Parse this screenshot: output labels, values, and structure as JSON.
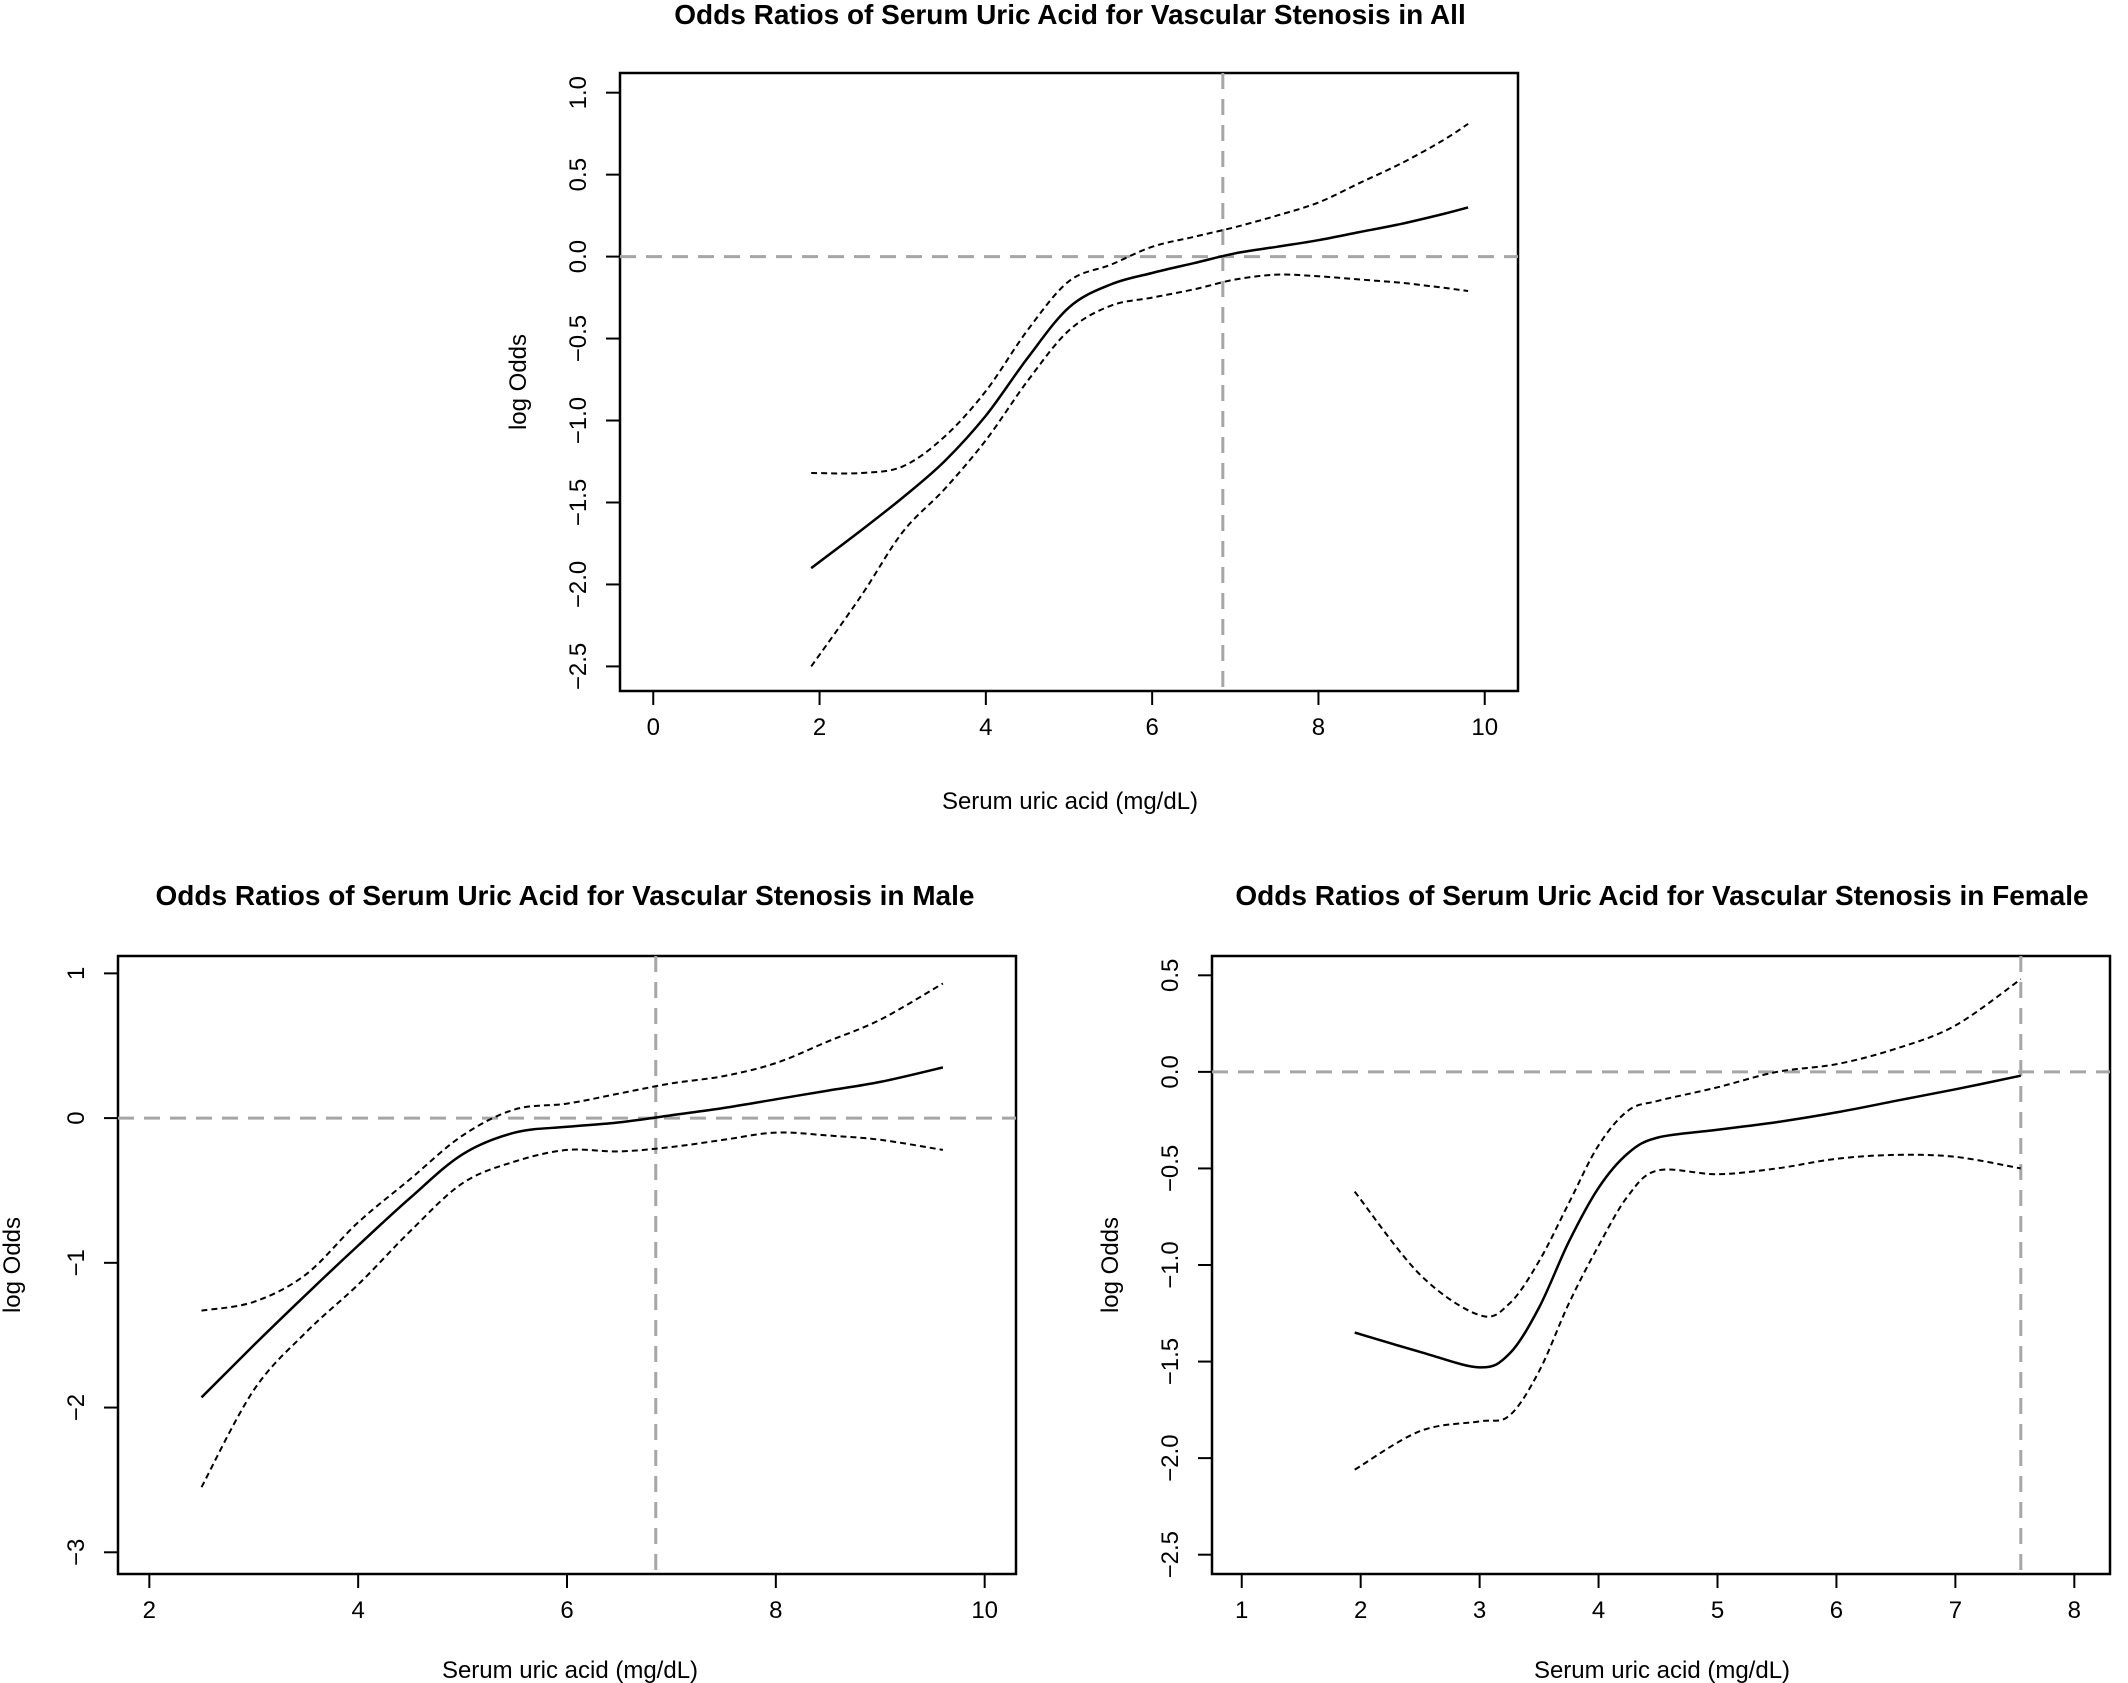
{
  "chart_data": [
    {
      "type": "line",
      "title": "Odds Ratios of Serum Uric Acid for Vascular Stenosis in All",
      "xlabel": "Serum uric acid (mg/dL)",
      "ylabel": "log Odds",
      "xlim": [
        -0.4,
        10.4
      ],
      "ylim": [
        -2.65,
        1.12
      ],
      "xticks": [
        "0",
        "2",
        "4",
        "6",
        "8",
        "10"
      ],
      "xtick_values": [
        0,
        2,
        4,
        6,
        8,
        10
      ],
      "yticks": [
        "−2.5",
        "−2.0",
        "−1.5",
        "−1.0",
        "−0.5",
        "0.0",
        "0.5",
        "1.0"
      ],
      "ytick_values": [
        -2.5,
        -2.0,
        -1.5,
        -1.0,
        -0.5,
        0.0,
        0.5,
        1.0
      ],
      "reference_x": 6.85,
      "reference_y": 0.0,
      "grid": false,
      "series": [
        {
          "role": "estimate",
          "style": "solid",
          "x": [
            1.9,
            2.5,
            3.0,
            3.5,
            4.0,
            4.5,
            5.0,
            5.5,
            6.0,
            6.5,
            7.0,
            7.5,
            8.0,
            8.5,
            9.0,
            9.5,
            9.8
          ],
          "y": [
            -1.9,
            -1.67,
            -1.47,
            -1.25,
            -0.97,
            -0.62,
            -0.31,
            -0.17,
            -0.1,
            -0.04,
            0.02,
            0.06,
            0.1,
            0.15,
            0.2,
            0.26,
            0.3
          ]
        },
        {
          "role": "upper CI",
          "style": "dashed",
          "x": [
            1.9,
            2.5,
            3.0,
            3.5,
            4.0,
            4.5,
            5.0,
            5.5,
            6.0,
            6.5,
            7.0,
            7.5,
            8.0,
            8.5,
            9.0,
            9.5,
            9.8
          ],
          "y": [
            -1.32,
            -1.32,
            -1.28,
            -1.1,
            -0.82,
            -0.45,
            -0.15,
            -0.05,
            0.06,
            0.12,
            0.18,
            0.25,
            0.33,
            0.45,
            0.57,
            0.71,
            0.81
          ]
        },
        {
          "role": "lower CI",
          "style": "dashed",
          "x": [
            1.9,
            2.5,
            3.0,
            3.5,
            4.0,
            4.5,
            5.0,
            5.5,
            6.0,
            6.5,
            7.0,
            7.5,
            8.0,
            8.5,
            9.0,
            9.5,
            9.8
          ],
          "y": [
            -2.5,
            -2.07,
            -1.68,
            -1.42,
            -1.12,
            -0.76,
            -0.45,
            -0.3,
            -0.25,
            -0.2,
            -0.14,
            -0.11,
            -0.12,
            -0.14,
            -0.16,
            -0.19,
            -0.21
          ]
        }
      ]
    },
    {
      "type": "line",
      "title": "Odds Ratios of Serum Uric Acid for Vascular Stenosis in Male",
      "xlabel": "Serum uric acid (mg/dL)",
      "ylabel": "log Odds",
      "xlim": [
        1.7,
        10.3
      ],
      "ylim": [
        -3.15,
        1.12
      ],
      "xticks": [
        "2",
        "4",
        "6",
        "8",
        "10"
      ],
      "xtick_values": [
        2,
        4,
        6,
        8,
        10
      ],
      "yticks": [
        "−3",
        "−2",
        "−1",
        "0",
        "1"
      ],
      "ytick_values": [
        -3,
        -2,
        -1,
        0,
        1
      ],
      "reference_x": 6.85,
      "reference_y": 0.0,
      "grid": false,
      "series": [
        {
          "role": "estimate",
          "style": "solid",
          "x": [
            2.5,
            3.0,
            3.5,
            4.0,
            4.5,
            5.0,
            5.5,
            6.0,
            6.5,
            7.0,
            7.5,
            8.0,
            8.5,
            9.0,
            9.6
          ],
          "y": [
            -1.93,
            -1.57,
            -1.22,
            -0.88,
            -0.55,
            -0.25,
            -0.1,
            -0.06,
            -0.03,
            0.02,
            0.07,
            0.13,
            0.19,
            0.25,
            0.35
          ]
        },
        {
          "role": "upper CI",
          "style": "dashed",
          "x": [
            2.5,
            3.0,
            3.5,
            4.0,
            4.5,
            5.0,
            5.5,
            6.0,
            6.5,
            7.0,
            7.5,
            8.0,
            8.5,
            9.0,
            9.6
          ],
          "y": [
            -1.33,
            -1.27,
            -1.08,
            -0.72,
            -0.42,
            -0.12,
            0.06,
            0.1,
            0.17,
            0.24,
            0.29,
            0.38,
            0.53,
            0.68,
            0.93
          ]
        },
        {
          "role": "lower CI",
          "style": "dashed",
          "x": [
            2.5,
            3.0,
            3.5,
            4.0,
            4.5,
            5.0,
            5.5,
            6.0,
            6.5,
            7.0,
            7.5,
            8.0,
            8.5,
            9.0,
            9.6
          ],
          "y": [
            -2.55,
            -1.88,
            -1.48,
            -1.15,
            -0.78,
            -0.45,
            -0.3,
            -0.22,
            -0.23,
            -0.2,
            -0.15,
            -0.1,
            -0.12,
            -0.15,
            -0.22
          ]
        }
      ]
    },
    {
      "type": "line",
      "title": "Odds Ratios of Serum Uric Acid for Vascular Stenosis in Female",
      "xlabel": "Serum uric acid (mg/dL)",
      "ylabel": "log Odds",
      "xlim": [
        0.75,
        8.3
      ],
      "ylim": [
        -2.6,
        0.6
      ],
      "xticks": [
        "1",
        "2",
        "3",
        "4",
        "5",
        "6",
        "7",
        "8"
      ],
      "xtick_values": [
        1,
        2,
        3,
        4,
        5,
        6,
        7,
        8
      ],
      "yticks": [
        "−2.5",
        "−2.0",
        "−1.5",
        "−1.0",
        "−0.5",
        "0.0",
        "0.5"
      ],
      "ytick_values": [
        -2.5,
        -2.0,
        -1.5,
        -1.0,
        -0.5,
        0.0,
        0.5
      ],
      "reference_x": 7.55,
      "reference_y": 0.0,
      "grid": false,
      "series": [
        {
          "role": "estimate",
          "style": "solid",
          "x": [
            1.95,
            2.5,
            3.0,
            3.25,
            3.5,
            3.75,
            4.0,
            4.25,
            4.5,
            5.0,
            5.5,
            6.0,
            6.5,
            7.0,
            7.55
          ],
          "y": [
            -1.35,
            -1.45,
            -1.53,
            -1.46,
            -1.22,
            -0.88,
            -0.6,
            -0.42,
            -0.34,
            -0.3,
            -0.26,
            -0.21,
            -0.15,
            -0.09,
            -0.02
          ]
        },
        {
          "role": "upper CI",
          "style": "dashed",
          "x": [
            1.95,
            2.5,
            3.0,
            3.25,
            3.5,
            3.75,
            4.0,
            4.25,
            4.5,
            5.0,
            5.5,
            6.0,
            6.5,
            7.0,
            7.55
          ],
          "y": [
            -0.62,
            -1.05,
            -1.26,
            -1.2,
            -0.98,
            -0.68,
            -0.38,
            -0.2,
            -0.15,
            -0.08,
            0.0,
            0.04,
            0.12,
            0.24,
            0.48
          ]
        },
        {
          "role": "lower CI",
          "style": "dashed",
          "x": [
            1.95,
            2.5,
            3.0,
            3.25,
            3.5,
            3.75,
            4.0,
            4.25,
            4.5,
            5.0,
            5.5,
            6.0,
            6.5,
            7.0,
            7.55
          ],
          "y": [
            -2.06,
            -1.86,
            -1.81,
            -1.78,
            -1.55,
            -1.2,
            -0.9,
            -0.64,
            -0.51,
            -0.53,
            -0.5,
            -0.45,
            -0.43,
            -0.44,
            -0.5
          ]
        }
      ]
    }
  ]
}
